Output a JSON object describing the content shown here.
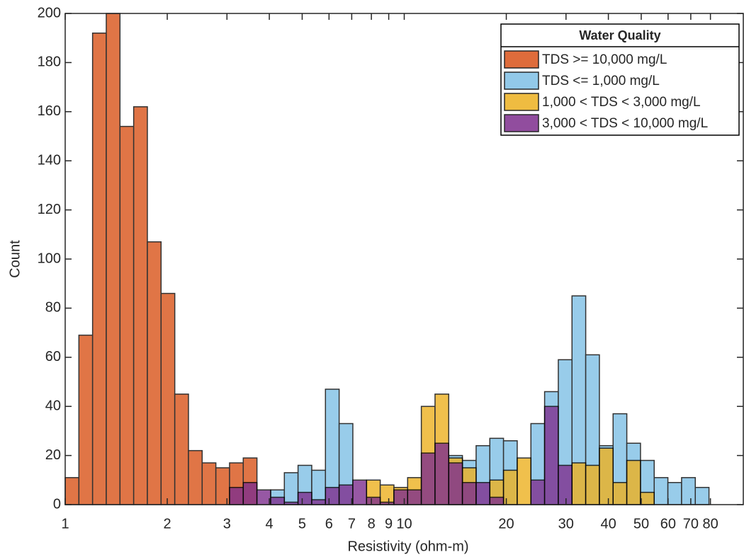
{
  "chart_data": {
    "type": "histogram",
    "xlabel": "Resistivity (ohm-m)",
    "ylabel": "Count",
    "legend_title": "Water Quality",
    "legend": "northeast",
    "xscale": "log",
    "xlim": [
      1,
      100
    ],
    "ylim": [
      0,
      200
    ],
    "xticks": [
      1,
      2,
      3,
      4,
      5,
      6,
      7,
      8,
      9,
      10,
      20,
      30,
      40,
      50,
      60,
      70,
      80
    ],
    "yticks": [
      0,
      20,
      40,
      60,
      80,
      100,
      120,
      140,
      160,
      180,
      200
    ],
    "bins": [
      1,
      1.0975,
      1.2045,
      1.3219,
      1.4508,
      1.5922,
      1.7474,
      1.9178,
      2.1048,
      2.3099,
      2.5351,
      2.7823,
      3.0535,
      3.3512,
      3.6779,
      4.0365,
      4.43,
      4.8619,
      5.3358,
      5.856,
      6.4269,
      7.0535,
      7.7411,
      8.4958,
      9.3241,
      10.233,
      11.231,
      12.326,
      13.527,
      14.846,
      16.293,
      17.882,
      19.625,
      21.538,
      23.638,
      25.942,
      28.471,
      31.247,
      34.294,
      37.637,
      41.306,
      45.333,
      49.753,
      54.603,
      59.926,
      65.768,
      72.179,
      79.216
    ],
    "series": [
      {
        "name": "TDS >= 10,000 mg/L",
        "color": "#D95319",
        "values": [
          11,
          69,
          192,
          200,
          154,
          162,
          107,
          86,
          45,
          22,
          17,
          15,
          17,
          19,
          0,
          0,
          0,
          0,
          0,
          0,
          0,
          0,
          0,
          0,
          0,
          0,
          0,
          0,
          0,
          0,
          0,
          0,
          0,
          0,
          0,
          0,
          0,
          0,
          0,
          0,
          0,
          0,
          0,
          0,
          0,
          0,
          0
        ]
      },
      {
        "name": "TDS <= 1,000 mg/L",
        "color": "#7FC0E6",
        "values": [
          0,
          0,
          0,
          0,
          0,
          0,
          0,
          0,
          0,
          0,
          0,
          0,
          0,
          0,
          0,
          6,
          13,
          16,
          14,
          47,
          33,
          0,
          0,
          0,
          0,
          0,
          0,
          0,
          20,
          18,
          24,
          27,
          26,
          0,
          33,
          46,
          59,
          85,
          61,
          24,
          37,
          25,
          18,
          11,
          9,
          11,
          7
        ]
      },
      {
        "name": "1,000 < TDS < 3,000 mg/L",
        "color": "#EDB120",
        "values": [
          0,
          0,
          0,
          0,
          0,
          0,
          0,
          0,
          0,
          0,
          0,
          0,
          0,
          0,
          0,
          0,
          0,
          0,
          0,
          0,
          0,
          0,
          10,
          8,
          7,
          11,
          40,
          45,
          19,
          15,
          0,
          10,
          14,
          19,
          0,
          0,
          0,
          17,
          16,
          23,
          9,
          18,
          5,
          0,
          0,
          0,
          0
        ]
      },
      {
        "name": "3,000 < TDS < 10,000 mg/L",
        "color": "#7E2F8E",
        "values": [
          0,
          0,
          0,
          0,
          0,
          0,
          0,
          0,
          0,
          0,
          0,
          0,
          7,
          9,
          6,
          3,
          1,
          5,
          2,
          7,
          8,
          10,
          3,
          1,
          6,
          6,
          21,
          25,
          17,
          9,
          9,
          3,
          0,
          0,
          10,
          40,
          16,
          0,
          0,
          0,
          0,
          0,
          0,
          0,
          0,
          0,
          0
        ]
      }
    ]
  }
}
